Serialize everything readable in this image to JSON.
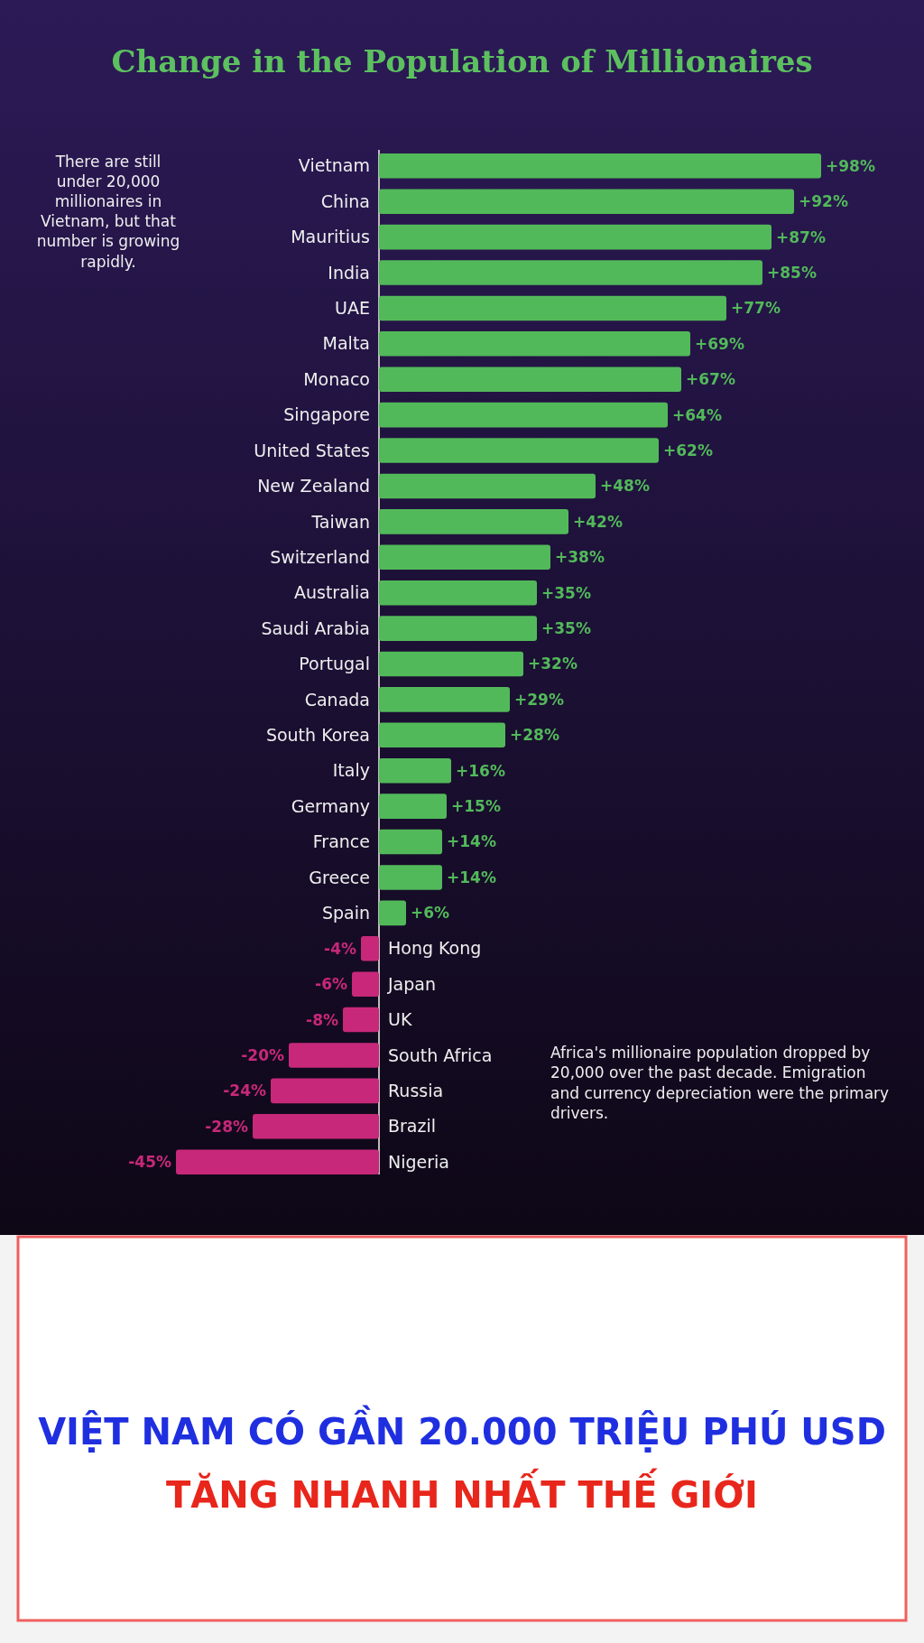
{
  "chart_data": {
    "type": "bar",
    "orientation": "horizontal",
    "title": "Change in the Population of Millionaires",
    "categories": [
      "Vietnam",
      "China",
      "Mauritius",
      "India",
      "UAE",
      "Malta",
      "Monaco",
      "Singapore",
      "United States",
      "New Zealand",
      "Taiwan",
      "Switzerland",
      "Australia",
      "Saudi Arabia",
      "Portugal",
      "Canada",
      "South Korea",
      "Italy",
      "Germany",
      "France",
      "Greece",
      "Spain",
      "Hong Kong",
      "Japan",
      "UK",
      "South Africa",
      "Russia",
      "Brazil",
      "Nigeria"
    ],
    "values": [
      98,
      92,
      87,
      85,
      77,
      69,
      67,
      64,
      62,
      48,
      42,
      38,
      35,
      35,
      32,
      29,
      28,
      16,
      15,
      14,
      14,
      6,
      -4,
      -6,
      -8,
      -20,
      -24,
      -28,
      -45
    ],
    "value_labels": [
      "+98%",
      "+92%",
      "+87%",
      "+85%",
      "+77%",
      "+69%",
      "+67%",
      "+64%",
      "+62%",
      "+48%",
      "+42%",
      "+38%",
      "+35%",
      "+35%",
      "+32%",
      "+29%",
      "+28%",
      "+16%",
      "+15%",
      "+14%",
      "+14%",
      "+6%",
      "-4%",
      "-6%",
      "-8%",
      "-20%",
      "-24%",
      "-28%",
      "-45%"
    ],
    "colors": [
      "#52b95a",
      "#52b95a",
      "#52b95a",
      "#52b95a",
      "#52b95a",
      "#52b95a",
      "#52b95a",
      "#52b95a",
      "#52b95a",
      "#52b95a",
      "#52b95a",
      "#52b95a",
      "#52b95a",
      "#52b95a",
      "#52b95a",
      "#52b95a",
      "#52b95a",
      "#52b95a",
      "#52b95a",
      "#52b95a",
      "#52b95a",
      "#52b95a",
      "#c8287a",
      "#c8287a",
      "#c8287a",
      "#c8287a",
      "#c8287a",
      "#c8287a",
      "#c8287a"
    ],
    "annotations": [
      "There are still under 20,000 millionaires in Vietnam, but that number is growing rapidly.",
      "Africa's millionaire population dropped by 20,000 over the past decade. Emigration and currency depreciation were the primary drivers.",
      "VIỆT NAM CÓ GẦN 20.000 TRIỆU PHÚ USD",
      "TĂNG NHANH NHẤT THẾ GIỚI"
    ]
  }
}
